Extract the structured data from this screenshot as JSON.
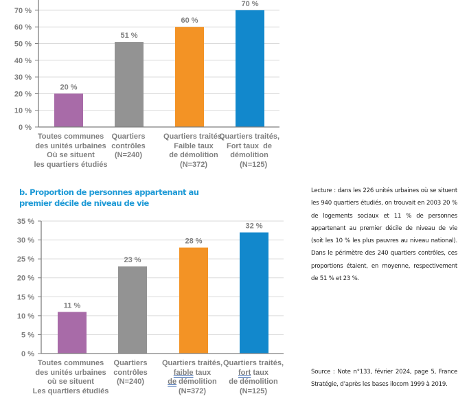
{
  "chart_data": [
    {
      "type": "bar",
      "title": "",
      "xlabel": "",
      "ylabel": "",
      "ylim": [
        0,
        80
      ],
      "yticks": [
        0,
        10,
        20,
        30,
        40,
        50,
        60,
        70
      ],
      "ytick_labels": [
        "0 %",
        "10 %",
        "20 %",
        "30 %",
        "40 %",
        "50 %",
        "60 %",
        "70 %"
      ],
      "grid": true,
      "categories": [
        "Toutes communes des unités urbaines Où se situent les quartiers étudiés",
        "Quartiers contrôles (N=240)",
        "Quartiers traités, Faible taux de démolition (N=372)",
        "Quartiers traités, Fort taux de démolition (N=125)"
      ],
      "category_lines": [
        [
          "Toutes communes",
          "des unités urbaines",
          "Où se situent",
          "les quartiers étudiés"
        ],
        [
          "Quartiers",
          "contrôles",
          "(N=240)"
        ],
        [
          "Quartiers traités,",
          "Faible taux",
          "de démolition",
          "(N=372)"
        ],
        [
          "Quartiers traités,",
          "Fort taux  de",
          "démolition",
          "    (N=125)"
        ]
      ],
      "values": [
        20,
        51,
        60,
        70
      ],
      "data_labels": [
        "20 %",
        "51 %",
        "60 %",
        "70 %"
      ],
      "colors": [
        "#a86ba8",
        "#939393",
        "#f39325",
        "#1288cc"
      ]
    },
    {
      "type": "bar",
      "title": "b. Proportion de personnes appartenant au premier décile de niveau de vie",
      "title_lines": [
        "b. Proportion de personnes appartenant au",
        "premier décile de niveau de vie"
      ],
      "xlabel": "",
      "ylabel": "",
      "ylim": [
        0,
        35
      ],
      "yticks": [
        0,
        5,
        10,
        15,
        20,
        25,
        30,
        35
      ],
      "ytick_labels": [
        "0 %",
        "5 %",
        "10 %",
        "15 %",
        "20 %",
        "25 %",
        "30 %",
        "35 %"
      ],
      "grid": true,
      "categories": [
        "Toutes communes des unités urbaines où se situent Les quartiers étudiés",
        "Quartiers contrôles (N=240)",
        "Quartiers traités, faible taux de démolition (N=372)",
        "Quartiers traités, fort taux de démolition (N=125)"
      ],
      "category_lines": [
        [
          "Toutes communes",
          "des unités urbaines",
          "où se situent",
          "Les quartiers étudiés"
        ],
        [
          "Quartiers",
          "contrôles",
          "(N=240)"
        ],
        [
          "Quartiers traités,",
          "faible| taux",
          "de| démolition",
          "(N=372)"
        ],
        [
          "Quartiers traités,",
          "fort| taux",
          "de démolition",
          "(N=125)"
        ]
      ],
      "values": [
        11,
        23,
        28,
        32
      ],
      "data_labels": [
        "11 %",
        "23 %",
        "28 %",
        "32 %"
      ],
      "colors": [
        "#a86ba8",
        "#939393",
        "#f39325",
        "#1288cc"
      ]
    }
  ],
  "notes": {
    "lecture": "Lecture : dans les 226 unités urbaines où se situent les 940 quartiers étudiés, on trouvait en 2003 20 % de logements sociaux  et 11 % de personnes appartenant au premier décile de niveau de vie (soit les 10 % les plus pauvres au niveau national). Dans le  périmètre des 240 quartiers contrôles, ces proportions étaient, en moyenne, respectivement de 51 % et 23 %.",
    "source": "Source : Note n°133, février 2024, page 5, France Stratégie, d’après les bases ilocom 1999 à 2019."
  },
  "title_color": "#1e9ad6"
}
